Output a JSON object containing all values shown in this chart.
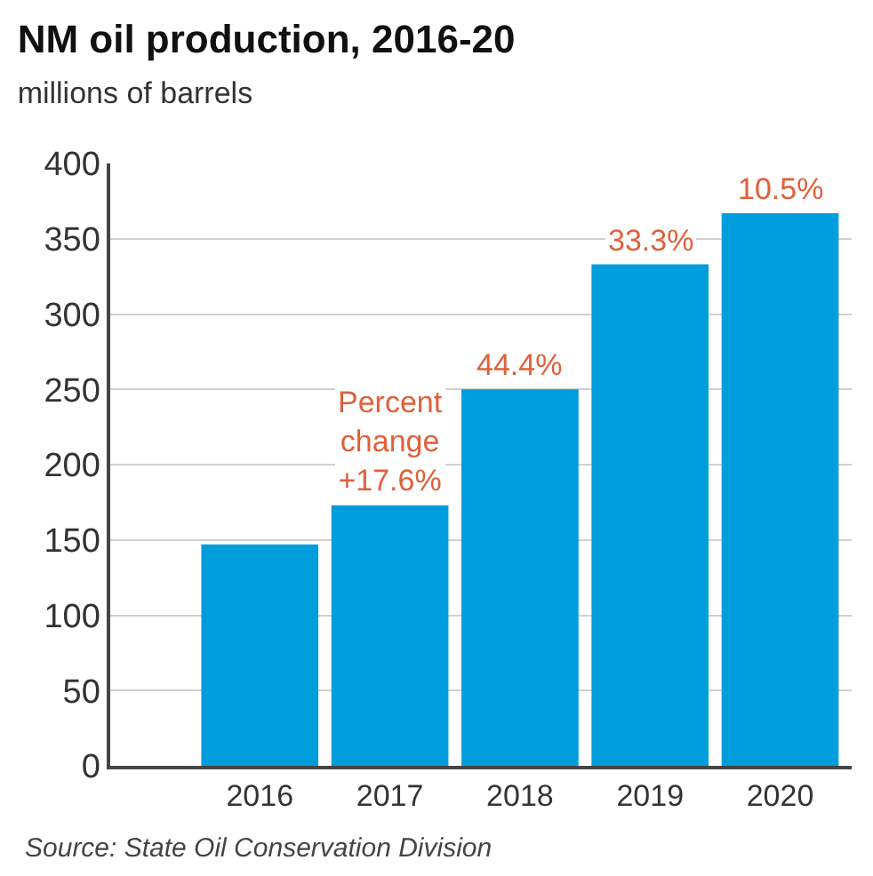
{
  "chart_data": {
    "type": "bar",
    "title": "NM oil production, 2016-20",
    "subtitle": "millions of barrels",
    "categories": [
      "2016",
      "2017",
      "2018",
      "2019",
      "2020"
    ],
    "values": [
      147,
      173,
      250,
      333,
      367
    ],
    "color": "#009ddc",
    "ylim": [
      0,
      400
    ],
    "yticks": [
      0,
      50,
      100,
      150,
      200,
      250,
      300,
      350,
      400
    ],
    "grid": "y",
    "annotations": [
      {
        "text": "Percent\nchange\n+17.6%",
        "x": "2017",
        "y": 173
      },
      {
        "text": "44.4%",
        "x": "2018",
        "y": 250
      },
      {
        "text": "33.3%",
        "x": "2019",
        "y": 333
      },
      {
        "text": "10.5%",
        "x": "2020",
        "y": 367
      },
      "Source: State Oil Conservation Division"
    ]
  }
}
